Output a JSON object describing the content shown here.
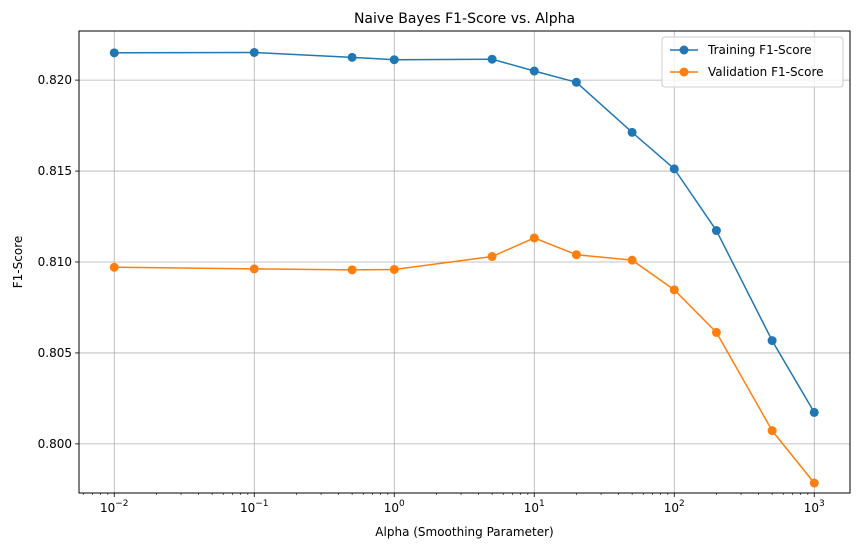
{
  "chart_data": {
    "type": "line",
    "title": "Naive Bayes F1-Score vs. Alpha",
    "xlabel": "Alpha (Smoothing Parameter)",
    "ylabel": "F1-Score",
    "xscale": "log",
    "xlim": [
      0.0056,
      1800
    ],
    "ylim": [
      0.7973,
      0.8227
    ],
    "x": [
      0.01,
      0.1,
      0.5,
      1,
      5,
      10,
      20,
      50,
      100,
      200,
      500,
      1000
    ],
    "xticks": [
      {
        "base": "10",
        "exp": "−2",
        "value": 0.01
      },
      {
        "base": "10",
        "exp": "−1",
        "value": 0.1
      },
      {
        "base": "10",
        "exp": "0",
        "value": 1
      },
      {
        "base": "10",
        "exp": "1",
        "value": 10
      },
      {
        "base": "10",
        "exp": "2",
        "value": 100
      },
      {
        "base": "10",
        "exp": "3",
        "value": 1000
      }
    ],
    "yticks": [
      "0.800",
      "0.805",
      "0.810",
      "0.815",
      "0.820"
    ],
    "grid": true,
    "legend_position": "top-right",
    "series": [
      {
        "name": "Training F1-Score",
        "color": "#1f77b4",
        "values": [
          0.8215,
          0.82152,
          0.82125,
          0.82112,
          0.82115,
          0.8205,
          0.81988,
          0.81713,
          0.81512,
          0.81173,
          0.80568,
          0.80173
        ]
      },
      {
        "name": "Validation F1-Score",
        "color": "#ff7f0e",
        "values": [
          0.80971,
          0.80962,
          0.80957,
          0.80959,
          0.8103,
          0.81132,
          0.8104,
          0.8101,
          0.80847,
          0.80613,
          0.80073,
          0.79785
        ]
      }
    ]
  }
}
